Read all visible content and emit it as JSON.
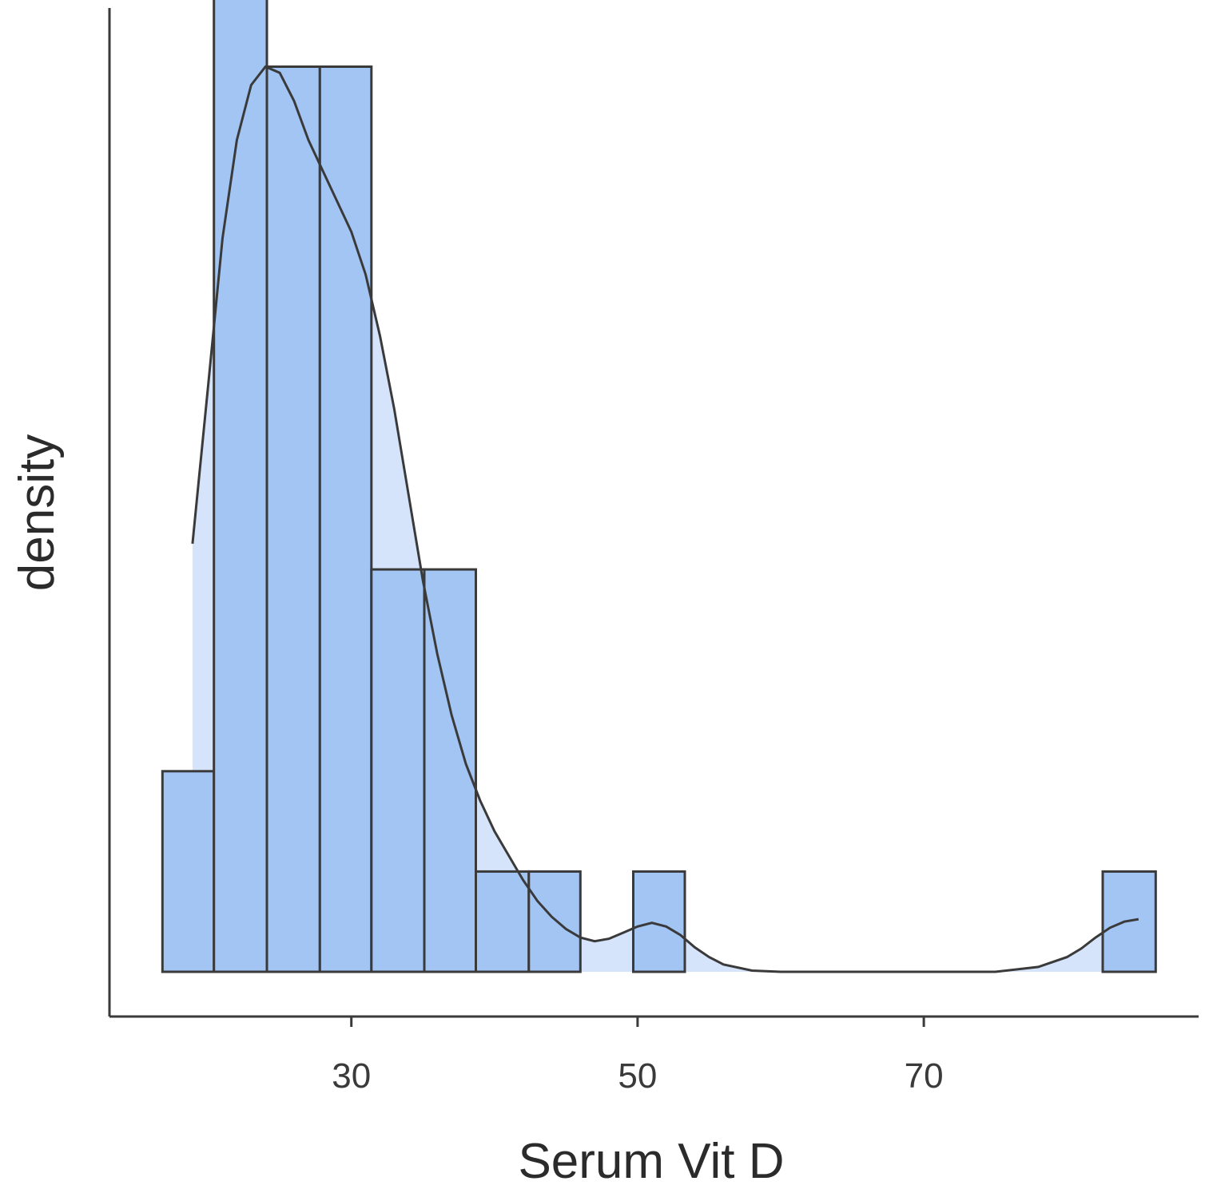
{
  "chart_data": {
    "type": "bar",
    "xlabel": "Serum Vit D",
    "ylabel": "density",
    "xlim": [
      13.1,
      89.2
    ],
    "ylim": [
      0,
      0.0788
    ],
    "x_ticks": [
      30,
      50,
      70
    ],
    "y_ticks_shown": false,
    "grid": false,
    "legend": "none",
    "bin_width": 3.65,
    "bins": [
      {
        "start": 16.8,
        "end": 20.4,
        "density": 0.0164
      },
      {
        "start": 20.4,
        "end": 24.1,
        "density": 0.0822
      },
      {
        "start": 24.1,
        "end": 27.8,
        "density": 0.074
      },
      {
        "start": 27.8,
        "end": 31.4,
        "density": 0.074
      },
      {
        "start": 31.4,
        "end": 35.1,
        "density": 0.0329
      },
      {
        "start": 35.1,
        "end": 38.7,
        "density": 0.0329
      },
      {
        "start": 38.7,
        "end": 42.4,
        "density": 0.0082
      },
      {
        "start": 42.4,
        "end": 46.0,
        "density": 0.0082
      },
      {
        "start": 46.0,
        "end": 49.7,
        "density": 0.0
      },
      {
        "start": 49.7,
        "end": 53.3,
        "density": 0.0082
      },
      {
        "start": 53.3,
        "end": 82.5,
        "density": 0.0
      },
      {
        "start": 82.5,
        "end": 86.2,
        "density": 0.0082
      }
    ],
    "density_curve": {
      "x": [
        18.9,
        20.0,
        21.0,
        22.0,
        23.0,
        24.0,
        25.0,
        26.0,
        27.0,
        28.0,
        29.0,
        30.0,
        31.0,
        32.0,
        33.0,
        34.0,
        35.0,
        36.0,
        37.0,
        38.0,
        39.0,
        40.0,
        41.0,
        42.0,
        43.0,
        44.0,
        45.0,
        46.0,
        47.0,
        48.0,
        49.0,
        50.0,
        51.0,
        52.0,
        53.0,
        54.0,
        55.0,
        56.0,
        58.0,
        60.0,
        65.0,
        70.0,
        75.0,
        78.0,
        80.0,
        81.0,
        82.0,
        83.0,
        84.0,
        85.0
      ],
      "y": [
        0.035,
        0.048,
        0.06,
        0.068,
        0.0725,
        0.074,
        0.0735,
        0.0712,
        0.068,
        0.0655,
        0.063,
        0.0605,
        0.057,
        0.052,
        0.046,
        0.039,
        0.032,
        0.026,
        0.021,
        0.017,
        0.014,
        0.0115,
        0.0095,
        0.0075,
        0.0058,
        0.0045,
        0.0035,
        0.0028,
        0.0025,
        0.0027,
        0.0032,
        0.0037,
        0.004,
        0.0037,
        0.003,
        0.002,
        0.0012,
        0.0006,
        0.0001,
        0.0,
        0.0,
        0.0,
        0.0,
        0.0004,
        0.0012,
        0.0019,
        0.0028,
        0.0036,
        0.0041,
        0.0043
      ]
    }
  }
}
